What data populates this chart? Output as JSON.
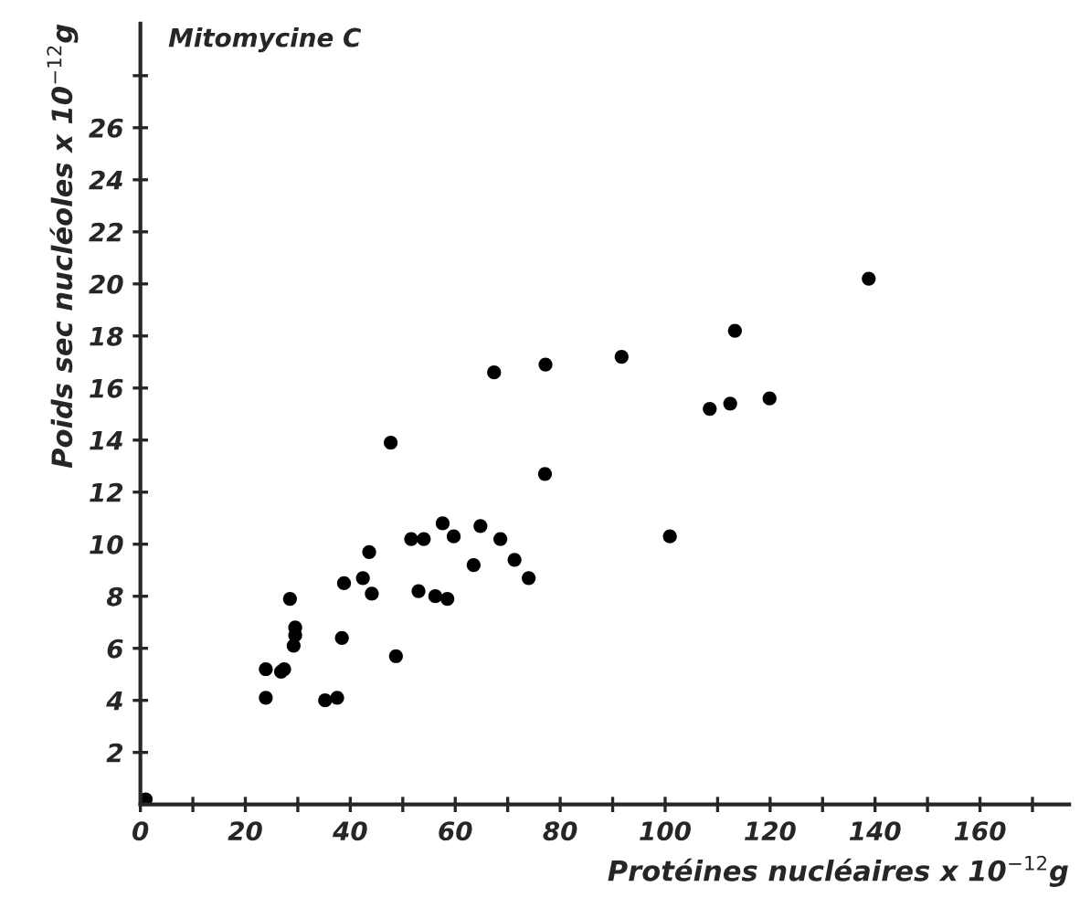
{
  "chart_data": {
    "type": "scatter",
    "title": "Mitomycine C",
    "xlabel": "Protéines nucléaires x 10$^{−12}$g",
    "ylabel": "Poids sec nucléoles x 10$^{−12}$g",
    "series": [
      {
        "color": "#000000",
        "x": [
          1,
          23.9,
          23.9,
          26.8,
          27.4,
          28.5,
          29.2,
          29.5,
          29.5,
          35.2,
          37.5,
          38.4,
          38.8,
          42.4,
          43.6,
          44.1,
          47.7,
          48.7,
          51.6,
          53.0,
          54.0,
          56.2,
          57.6,
          58.5,
          59.7,
          63.5,
          64.8,
          67.4,
          68.6,
          71.3,
          74.0,
          77.1,
          77.2,
          91.7,
          100.9,
          108.5,
          112.4,
          113.3,
          119.9,
          138.8
        ],
        "values": [
          0.2,
          5.2,
          4.1,
          5.1,
          5.2,
          7.9,
          6.1,
          6.8,
          6.5,
          4.0,
          4.1,
          6.4,
          8.5,
          8.7,
          9.7,
          8.1,
          13.9,
          5.7,
          10.2,
          8.2,
          10.2,
          8.0,
          10.8,
          7.9,
          10.3,
          9.2,
          10.7,
          16.6,
          10.2,
          9.4,
          8.7,
          12.7,
          16.9,
          17.2,
          10.3,
          15.2,
          15.4,
          18.2,
          15.6,
          20.2
        ]
      }
    ],
    "marker": "circle",
    "grid": false,
    "legend": false,
    "xlim": [
      0,
      177
    ],
    "xticks": [
      0,
      {
        "value": 10,
        "label": null
      },
      20,
      {
        "value": 30,
        "label": null
      },
      40,
      {
        "value": 50,
        "label": null
      },
      60,
      {
        "value": 70,
        "label": null
      },
      80,
      {
        "value": 90,
        "label": null
      },
      100,
      {
        "value": 110,
        "label": null
      },
      120,
      {
        "value": 130,
        "label": null
      },
      140,
      {
        "value": 150,
        "label": null
      },
      160,
      {
        "value": 170,
        "label": null
      }
    ],
    "ylim": [
      0,
      30
    ],
    "yticks": [
      2,
      4,
      6,
      8,
      10,
      12,
      14,
      16,
      18,
      20,
      22,
      24,
      26,
      {
        "value": 28,
        "label": null
      }
    ]
  }
}
